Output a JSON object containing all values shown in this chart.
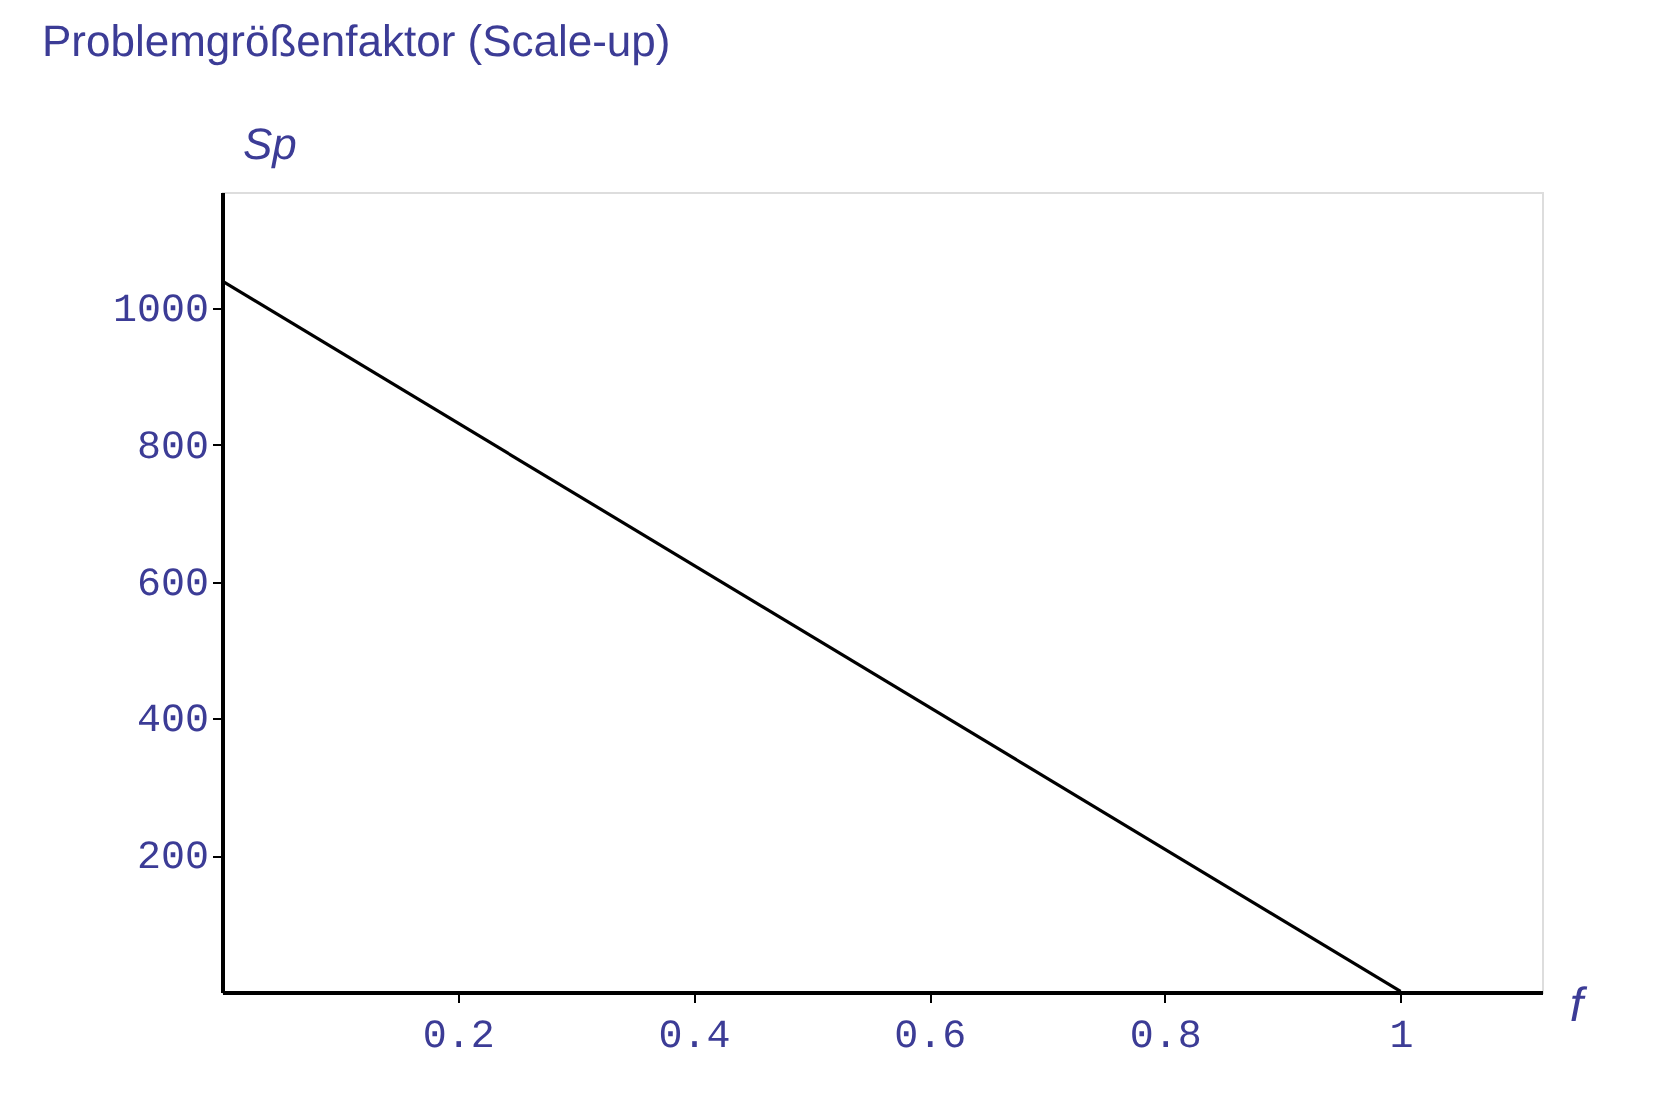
{
  "chart_data": {
    "type": "line",
    "title": "Problemgrößenfaktor (Scale-up)",
    "xlabel": "f",
    "ylabel": "Sp",
    "x": [
      0,
      1
    ],
    "series": [
      {
        "color": "#000000",
        "values": [
          1040,
          1
        ]
      }
    ],
    "xlim": [
      0,
      1.12
    ],
    "ylim": [
      0,
      1170
    ],
    "xticks": [
      0.2,
      0.4,
      0.6,
      0.8,
      1
    ],
    "yticks": [
      200,
      400,
      600,
      800,
      1000
    ],
    "grid": false,
    "legend": false,
    "marker": "none",
    "line_style": "solid"
  }
}
